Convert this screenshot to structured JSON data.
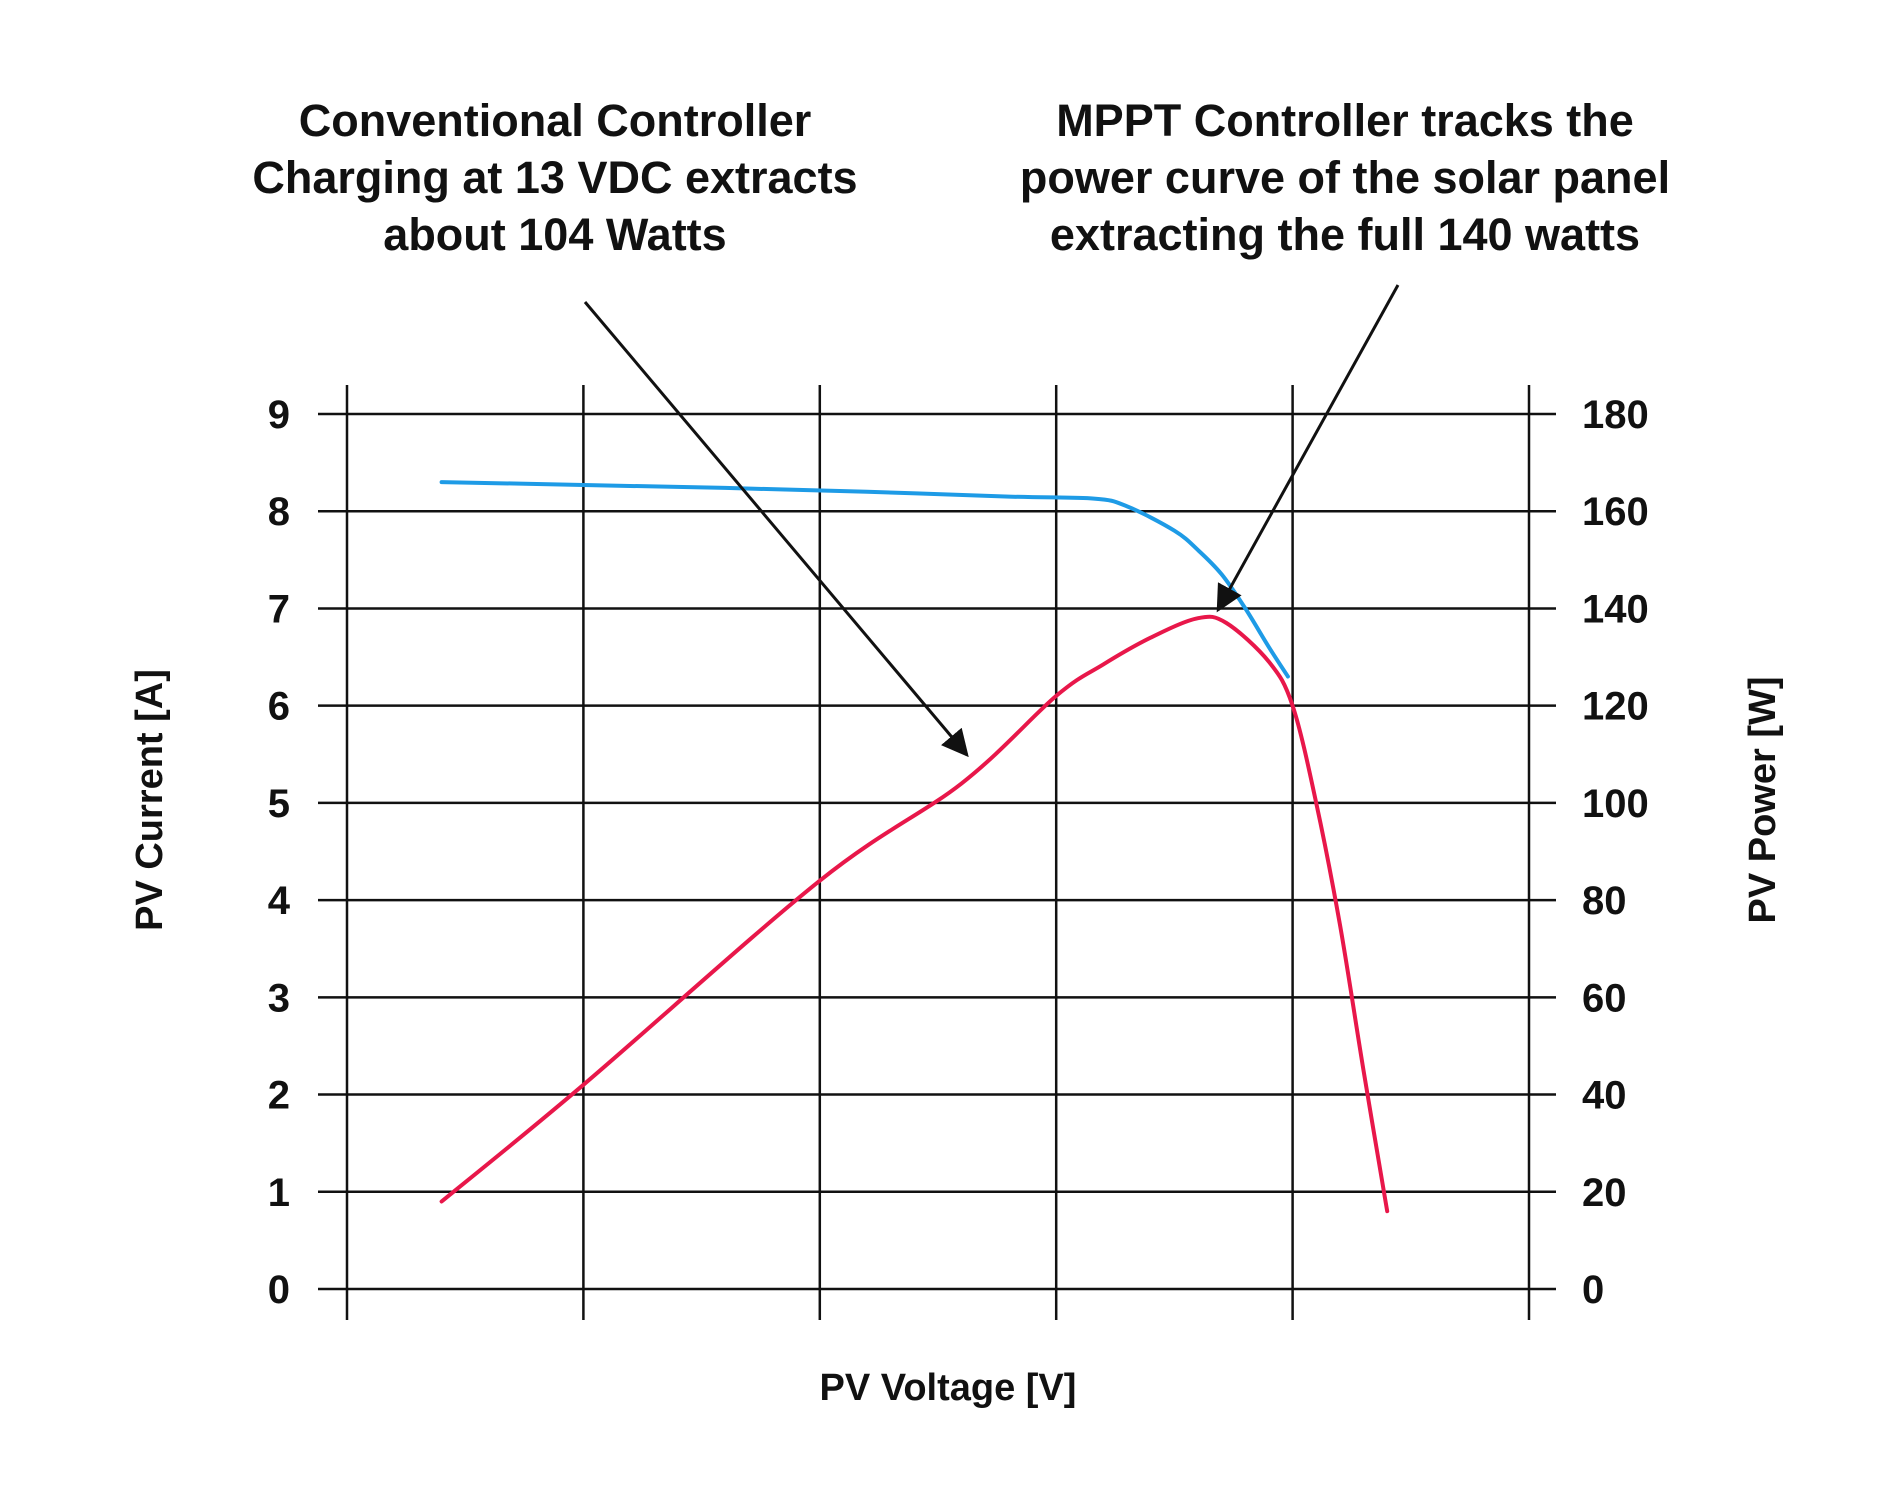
{
  "chart_data": {
    "type": "line",
    "title": "",
    "xlabel": "PV Voltage [V]",
    "ylabel_left": "PV Current [A]",
    "ylabel_right": "PV Power [W]",
    "x_ticks": [
      "",
      "",
      "",
      "",
      "",
      ""
    ],
    "xlim": [
      0,
      25
    ],
    "ylim_left": [
      0,
      9
    ],
    "ylim_right": [
      0,
      180
    ],
    "y_ticks_left": [
      "0",
      "1",
      "2",
      "3",
      "4",
      "5",
      "6",
      "7",
      "8",
      "9"
    ],
    "y_ticks_right": [
      "0",
      "20",
      "40",
      "60",
      "80",
      "100",
      "120",
      "140",
      "160",
      "180"
    ],
    "grid": true,
    "series": [
      {
        "name": "PV Current",
        "axis": "left",
        "color": "#1e9be6",
        "points": [
          [
            2,
            8.3
          ],
          [
            5,
            8.27
          ],
          [
            8,
            8.24
          ],
          [
            11,
            8.2
          ],
          [
            14,
            8.15
          ],
          [
            15.8,
            8.13
          ],
          [
            16.5,
            8.05
          ],
          [
            17.5,
            7.8
          ],
          [
            18,
            7.6
          ],
          [
            18.5,
            7.35
          ],
          [
            19,
            7.0
          ],
          [
            19.5,
            6.6
          ],
          [
            19.9,
            6.3
          ]
        ]
      },
      {
        "name": "PV Power",
        "axis": "right",
        "color": "#e8174a",
        "points": [
          [
            2,
            18
          ],
          [
            5,
            42
          ],
          [
            10,
            84
          ],
          [
            13,
            104
          ],
          [
            15,
            122
          ],
          [
            16,
            128.5
          ],
          [
            17,
            134
          ],
          [
            18,
            138
          ],
          [
            18.6,
            137
          ],
          [
            19.5,
            129
          ],
          [
            20,
            120
          ],
          [
            20.5,
            100
          ],
          [
            21,
            75
          ],
          [
            21.5,
            45
          ],
          [
            22,
            16
          ]
        ]
      }
    ],
    "annotations": [
      {
        "lines": [
          "Conventional Controller",
          "Charging at 13 VDC extracts",
          "about 104 Watts"
        ],
        "points_to": {
          "x": 13,
          "y": 104,
          "axis": "right"
        }
      },
      {
        "lines": [
          "MPPT Controller tracks the",
          "power curve of the solar panel",
          "extracting the full 140 watts"
        ],
        "points_to": {
          "x": 18,
          "y": 140,
          "axis": "right"
        }
      }
    ]
  }
}
